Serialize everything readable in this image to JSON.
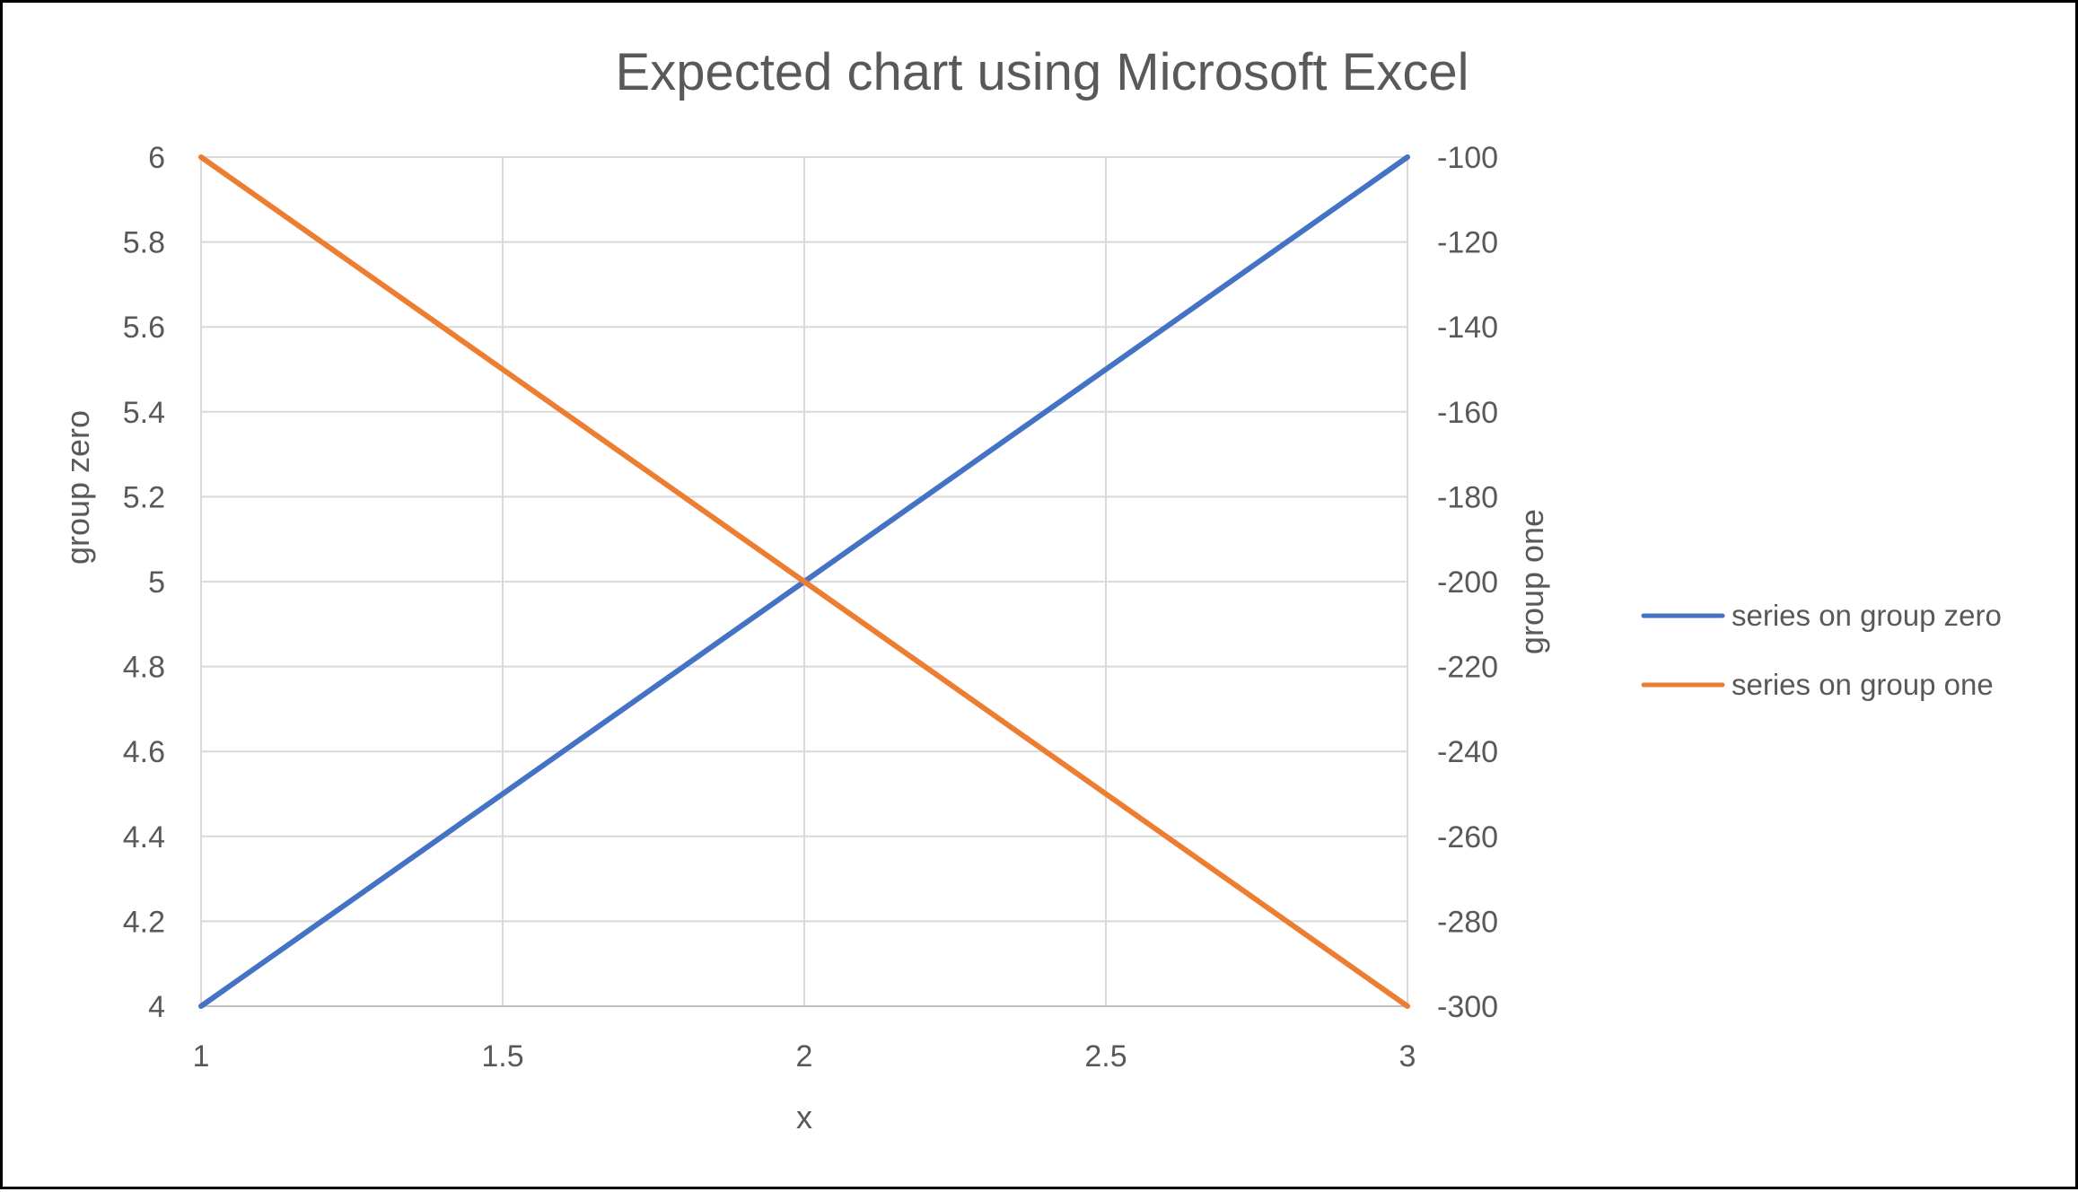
{
  "chart_data": {
    "type": "line",
    "title": "Expected chart using Microsoft Excel",
    "xlabel": "x",
    "ylabel": "group zero",
    "y2label": "group one",
    "xlim": [
      1,
      3
    ],
    "ylim": [
      4,
      6
    ],
    "y2lim": [
      -300,
      -100
    ],
    "x_ticks": [
      1,
      1.5,
      2,
      2.5,
      3
    ],
    "x_tick_labels": [
      "1",
      "1.5",
      "2",
      "2.5",
      "3"
    ],
    "y_ticks": [
      4,
      4.2,
      4.4,
      4.6,
      4.8,
      5,
      5.2,
      5.4,
      5.6,
      5.8,
      6
    ],
    "y_tick_labels": [
      "4",
      "4.2",
      "4.4",
      "4.6",
      "4.8",
      "5",
      "5.2",
      "5.4",
      "5.6",
      "5.8",
      "6"
    ],
    "y2_ticks": [
      -300,
      -280,
      -260,
      -240,
      -220,
      -200,
      -180,
      -160,
      -140,
      -120,
      -100
    ],
    "y2_tick_labels": [
      "-300",
      "-280",
      "-260",
      "-240",
      "-220",
      "-200",
      "-180",
      "-160",
      "-140",
      "-120",
      "-100"
    ],
    "grid": true,
    "legend_position": "right",
    "series": [
      {
        "name": "series on group zero",
        "axis": "left",
        "color": "#4472C4",
        "x": [
          1,
          2,
          3
        ],
        "y": [
          4,
          5,
          6
        ]
      },
      {
        "name": "series on group one",
        "axis": "right",
        "color": "#ED7D31",
        "x": [
          1,
          2,
          3
        ],
        "y": [
          -100,
          -200,
          -300
        ]
      }
    ]
  }
}
